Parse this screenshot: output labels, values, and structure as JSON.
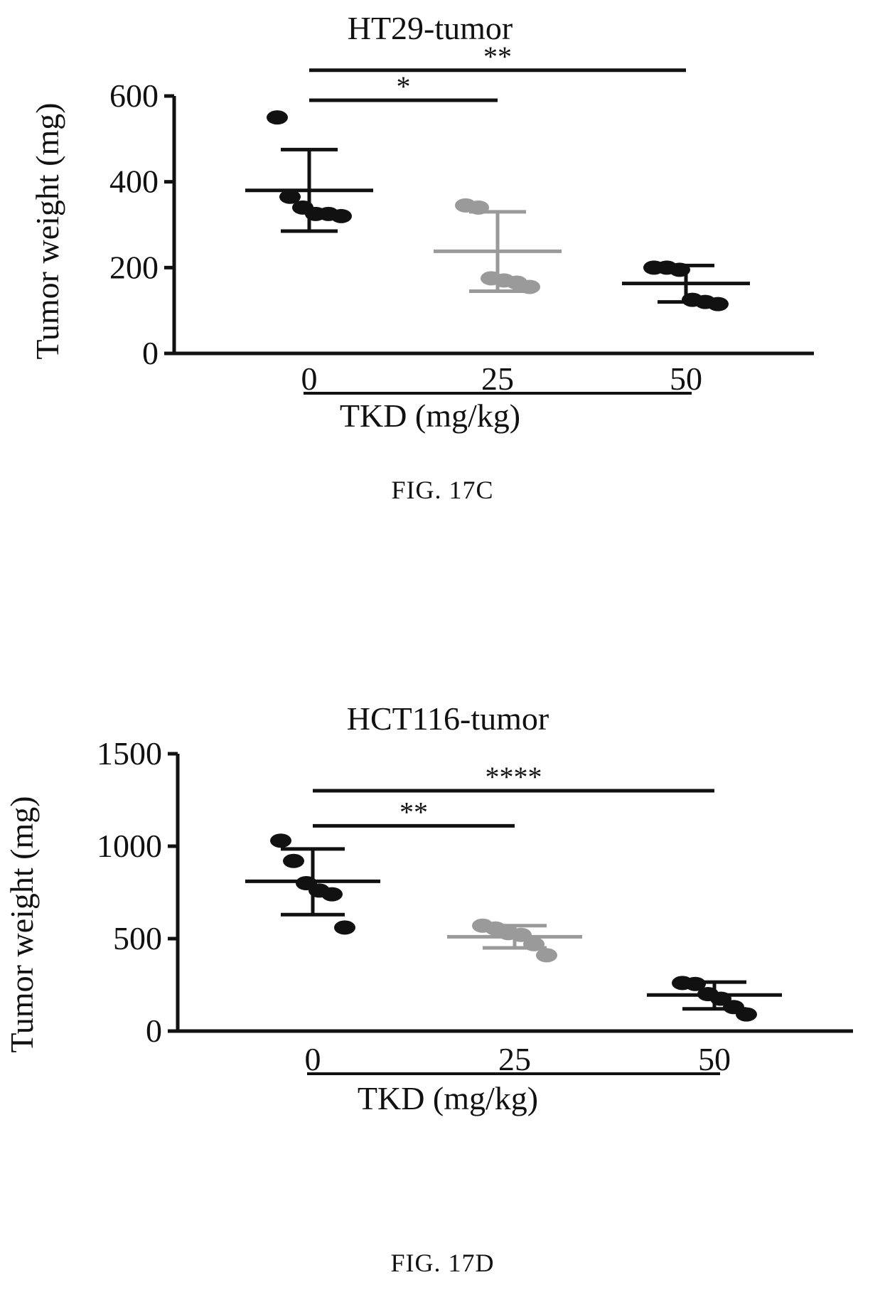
{
  "chart_data": [
    {
      "type": "scatter",
      "title": "HT29-tumor",
      "ylabel": "Tumor weight (mg)",
      "xlabel": "TKD (mg/kg)",
      "categories": [
        "0",
        "25",
        "50"
      ],
      "y_ticks": [
        "0",
        "200",
        "400",
        "600"
      ],
      "ylim": [
        0,
        600
      ],
      "grid": false,
      "series": [
        {
          "category": "0",
          "color": "#111111",
          "points": [
            550,
            365,
            340,
            325,
            325,
            320
          ],
          "mean": 380,
          "sd_upper": 475,
          "sd_lower": 285
        },
        {
          "category": "25",
          "color": "#9a9a9a",
          "points": [
            345,
            340,
            175,
            170,
            165,
            155
          ],
          "mean": 238,
          "sd_upper": 330,
          "sd_lower": 145
        },
        {
          "category": "50",
          "color": "#111111",
          "points": [
            200,
            200,
            195,
            125,
            120,
            115
          ],
          "mean": 163,
          "sd_upper": 205,
          "sd_lower": 120
        }
      ],
      "significance": [
        {
          "from": "0",
          "to": "25",
          "label": "*",
          "level": 590
        },
        {
          "from": "0",
          "to": "50",
          "label": "**",
          "level": 660
        }
      ],
      "caption": "FIG. 17C"
    },
    {
      "type": "scatter",
      "title": "HCT116-tumor",
      "ylabel": "Tumor weight (mg)",
      "xlabel": "TKD (mg/kg)",
      "categories": [
        "0",
        "25",
        "50"
      ],
      "y_ticks": [
        "0",
        "500",
        "1000",
        "1500"
      ],
      "ylim": [
        0,
        1500
      ],
      "grid": false,
      "series": [
        {
          "category": "0",
          "color": "#111111",
          "points": [
            1030,
            920,
            800,
            760,
            740,
            560
          ],
          "mean": 810,
          "sd_upper": 985,
          "sd_lower": 630
        },
        {
          "category": "25",
          "color": "#9a9a9a",
          "points": [
            570,
            555,
            530,
            520,
            470,
            410
          ],
          "mean": 510,
          "sd_upper": 570,
          "sd_lower": 450
        },
        {
          "category": "50",
          "color": "#111111",
          "points": [
            260,
            255,
            200,
            175,
            130,
            90
          ],
          "mean": 195,
          "sd_upper": 265,
          "sd_lower": 120
        }
      ],
      "significance": [
        {
          "from": "0",
          "to": "25",
          "label": "**",
          "level": 1110
        },
        {
          "from": "0",
          "to": "50",
          "label": "****",
          "level": 1300
        }
      ],
      "caption": "FIG. 17D"
    }
  ]
}
